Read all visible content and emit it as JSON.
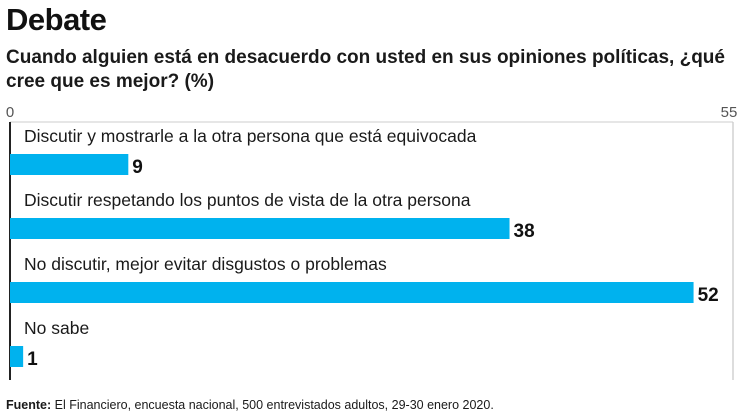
{
  "title": "Debate",
  "subtitle": "Cuando alguien está en desacuerdo con usted en sus opiniones políticas, ¿qué cree que es mejor? (%)",
  "source": {
    "label": "Fuente:",
    "text": " El Financiero, encuesta nacional, 500 entrevistados adultos, 29-30 enero 2020."
  },
  "colors": {
    "bar": "#00b2ee",
    "axis": "#222222",
    "grid": "#bbbbbb"
  },
  "chart_data": {
    "type": "bar",
    "orientation": "horizontal",
    "categories": [
      "Discutir y mostrarle a la otra persona que está equivocada",
      "Discutir respetando los puntos de vista de la otra persona",
      "No discutir, mejor evitar disgustos o problemas",
      "No sabe"
    ],
    "values": [
      9,
      38,
      52,
      1
    ],
    "xlim": [
      0,
      55
    ],
    "xticks": [
      "0",
      "55"
    ],
    "data_labels": [
      "9",
      "38",
      "52",
      "1"
    ]
  }
}
